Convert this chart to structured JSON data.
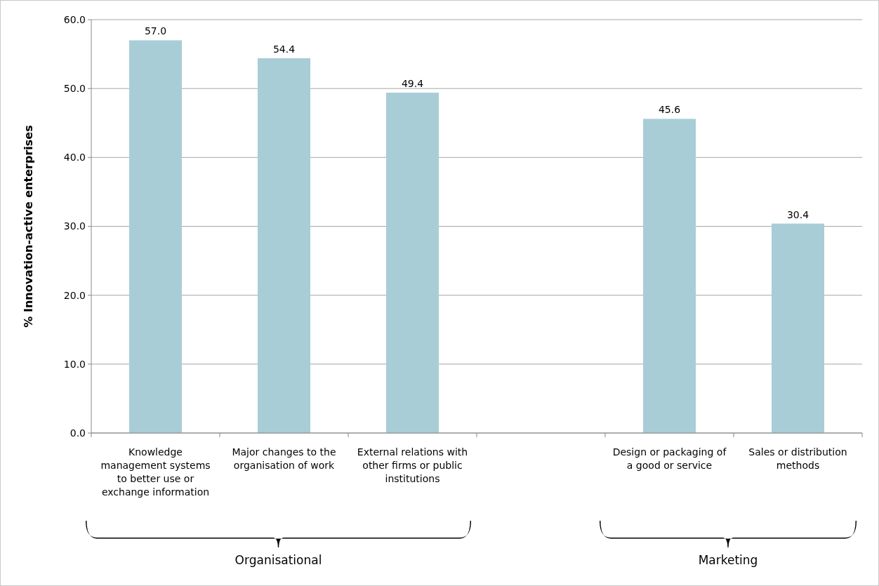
{
  "chart_data": {
    "type": "bar",
    "ylabel": "% Innovation-active enterprises",
    "categories": [
      "Knowledge management systems to better use or exchange information",
      "Major changes to the organisation of work",
      "External relations with other firms or public institutions",
      null,
      "Design or packaging of a good or service",
      "Sales or distribution methods"
    ],
    "values": [
      57.0,
      54.4,
      49.4,
      null,
      45.6,
      30.4
    ],
    "value_labels": [
      "57.0",
      "54.4",
      "49.4",
      null,
      "45.6",
      "30.4"
    ],
    "color": "#a8cdd7",
    "ylim": [
      0,
      60
    ],
    "yticks": [
      {
        "value": 0,
        "label": "0.0"
      },
      {
        "value": 10,
        "label": "10.0"
      },
      {
        "value": 20,
        "label": "20.0"
      },
      {
        "value": 30,
        "label": "30.0"
      },
      {
        "value": 40,
        "label": "40.0"
      },
      {
        "value": 50,
        "label": "50.0"
      },
      {
        "value": 60,
        "label": "60.0"
      }
    ],
    "grid": "y",
    "annotations": [
      "Organisational",
      "Marketing"
    ]
  }
}
